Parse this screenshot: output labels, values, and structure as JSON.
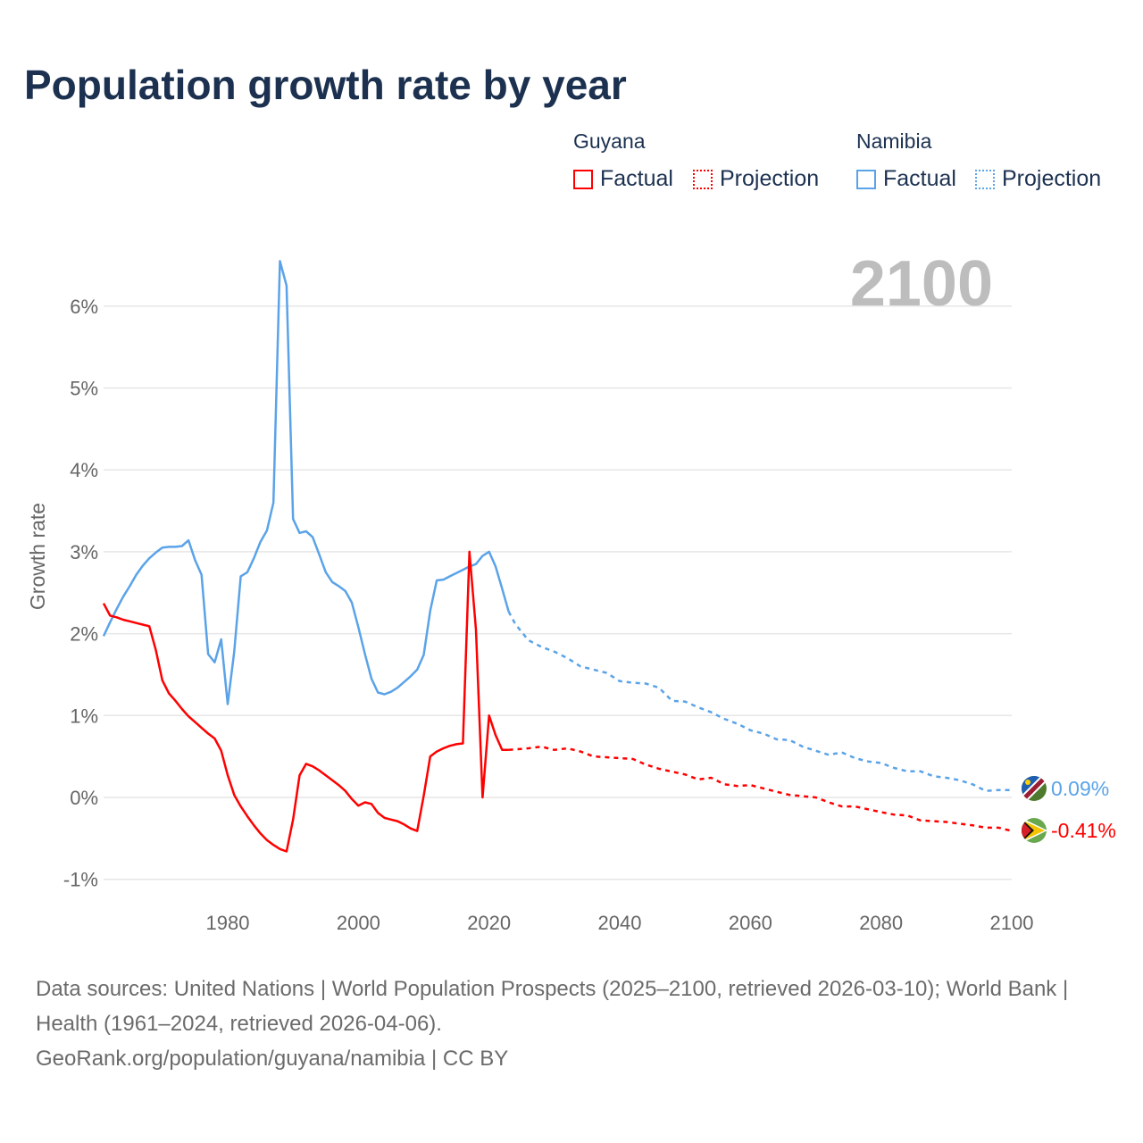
{
  "title": "Population growth rate by year",
  "legend": {
    "groups": [
      {
        "name": "Guyana",
        "color": "#ff0000",
        "factual": "Factual",
        "projection": "Projection"
      },
      {
        "name": "Namibia",
        "color": "#5aa3e8",
        "factual": "Factual",
        "projection": "Projection"
      }
    ]
  },
  "year_label": "2100",
  "end_labels": {
    "namibia": "0.09%",
    "guyana": "-0.41%"
  },
  "sources": {
    "line1": "Data sources: United Nations | World Population Prospects (2025–2100, retrieved 2026-03-10); World Bank | Health (1961–2024, retrieved 2026-04-06).",
    "line2": "GeoRank.org/population/guyana/namibia | CC BY"
  },
  "chart_data": {
    "type": "line",
    "title": "Population growth rate by year",
    "xlabel": "",
    "ylabel": "Growth rate",
    "xlim": [
      1961,
      2100
    ],
    "ylim": [
      -1.2,
      6.8
    ],
    "xticks": [
      {
        "v": 1980,
        "label": "1980"
      },
      {
        "v": 2000,
        "label": "2000"
      },
      {
        "v": 2020,
        "label": "2020"
      },
      {
        "v": 2040,
        "label": "2040"
      },
      {
        "v": 2060,
        "label": "2060"
      },
      {
        "v": 2080,
        "label": "2080"
      },
      {
        "v": 2100,
        "label": "2100"
      }
    ],
    "yticks": [
      {
        "v": -1,
        "label": "-1%"
      },
      {
        "v": 0,
        "label": "0%"
      },
      {
        "v": 1,
        "label": "1%"
      },
      {
        "v": 2,
        "label": "2%"
      },
      {
        "v": 3,
        "label": "3%"
      },
      {
        "v": 4,
        "label": "4%"
      },
      {
        "v": 5,
        "label": "5%"
      },
      {
        "v": 6,
        "label": "6%"
      }
    ],
    "grid": true,
    "series": [
      {
        "name": "Namibia",
        "kind": "factual",
        "color": "#5aa3e8",
        "points": [
          [
            1961,
            1.97
          ],
          [
            1962,
            2.14
          ],
          [
            1963,
            2.3
          ],
          [
            1964,
            2.45
          ],
          [
            1965,
            2.58
          ],
          [
            1966,
            2.72
          ],
          [
            1967,
            2.83
          ],
          [
            1968,
            2.92
          ],
          [
            1969,
            2.99
          ],
          [
            1970,
            3.05
          ],
          [
            1971,
            3.06
          ],
          [
            1972,
            3.06
          ],
          [
            1973,
            3.07
          ],
          [
            1974,
            3.14
          ],
          [
            1975,
            2.9
          ],
          [
            1976,
            2.72
          ],
          [
            1977,
            1.75
          ],
          [
            1978,
            1.65
          ],
          [
            1979,
            1.93
          ],
          [
            1980,
            1.14
          ],
          [
            1981,
            1.78
          ],
          [
            1982,
            2.7
          ],
          [
            1983,
            2.75
          ],
          [
            1984,
            2.92
          ],
          [
            1985,
            3.12
          ],
          [
            1986,
            3.26
          ],
          [
            1987,
            3.6
          ],
          [
            1988,
            6.55
          ],
          [
            1989,
            6.25
          ],
          [
            1990,
            3.4
          ],
          [
            1991,
            3.23
          ],
          [
            1992,
            3.25
          ],
          [
            1993,
            3.18
          ],
          [
            1994,
            2.97
          ],
          [
            1995,
            2.75
          ],
          [
            1996,
            2.63
          ],
          [
            1997,
            2.58
          ],
          [
            1998,
            2.52
          ],
          [
            1999,
            2.38
          ],
          [
            2000,
            2.08
          ],
          [
            2001,
            1.75
          ],
          [
            2002,
            1.45
          ],
          [
            2003,
            1.28
          ],
          [
            2004,
            1.26
          ],
          [
            2005,
            1.29
          ],
          [
            2006,
            1.34
          ],
          [
            2007,
            1.41
          ],
          [
            2008,
            1.48
          ],
          [
            2009,
            1.56
          ],
          [
            2010,
            1.74
          ],
          [
            2011,
            2.28
          ],
          [
            2012,
            2.65
          ],
          [
            2013,
            2.66
          ],
          [
            2014,
            2.7
          ],
          [
            2015,
            2.74
          ],
          [
            2016,
            2.78
          ],
          [
            2017,
            2.82
          ],
          [
            2018,
            2.85
          ],
          [
            2019,
            2.95
          ],
          [
            2020,
            3.0
          ],
          [
            2021,
            2.82
          ],
          [
            2022,
            2.55
          ],
          [
            2023,
            2.27
          ]
        ]
      },
      {
        "name": "Namibia",
        "kind": "projection",
        "color": "#5aa3e8",
        "points": [
          [
            2023,
            2.27
          ],
          [
            2024,
            2.12
          ],
          [
            2026,
            1.92
          ],
          [
            2028,
            1.84
          ],
          [
            2030,
            1.78
          ],
          [
            2032,
            1.7
          ],
          [
            2034,
            1.6
          ],
          [
            2036,
            1.56
          ],
          [
            2038,
            1.52
          ],
          [
            2040,
            1.42
          ],
          [
            2042,
            1.4
          ],
          [
            2044,
            1.39
          ],
          [
            2046,
            1.34
          ],
          [
            2048,
            1.18
          ],
          [
            2050,
            1.17
          ],
          [
            2052,
            1.1
          ],
          [
            2054,
            1.04
          ],
          [
            2056,
            0.96
          ],
          [
            2058,
            0.9
          ],
          [
            2060,
            0.82
          ],
          [
            2062,
            0.78
          ],
          [
            2064,
            0.71
          ],
          [
            2066,
            0.7
          ],
          [
            2068,
            0.62
          ],
          [
            2070,
            0.57
          ],
          [
            2072,
            0.52
          ],
          [
            2074,
            0.55
          ],
          [
            2076,
            0.48
          ],
          [
            2078,
            0.44
          ],
          [
            2080,
            0.42
          ],
          [
            2082,
            0.36
          ],
          [
            2084,
            0.32
          ],
          [
            2086,
            0.32
          ],
          [
            2088,
            0.26
          ],
          [
            2090,
            0.24
          ],
          [
            2092,
            0.21
          ],
          [
            2094,
            0.16
          ],
          [
            2096,
            0.08
          ],
          [
            2098,
            0.09
          ],
          [
            2100,
            0.09
          ]
        ]
      },
      {
        "name": "Guyana",
        "kind": "factual",
        "color": "#ff0000",
        "points": [
          [
            1961,
            2.37
          ],
          [
            1962,
            2.22
          ],
          [
            1963,
            2.2
          ],
          [
            1964,
            2.17
          ],
          [
            1965,
            2.15
          ],
          [
            1966,
            2.13
          ],
          [
            1967,
            2.11
          ],
          [
            1968,
            2.09
          ],
          [
            1969,
            1.8
          ],
          [
            1970,
            1.43
          ],
          [
            1971,
            1.27
          ],
          [
            1972,
            1.18
          ],
          [
            1973,
            1.08
          ],
          [
            1974,
            0.99
          ],
          [
            1975,
            0.92
          ],
          [
            1976,
            0.85
          ],
          [
            1977,
            0.78
          ],
          [
            1978,
            0.72
          ],
          [
            1979,
            0.57
          ],
          [
            1980,
            0.27
          ],
          [
            1981,
            0.03
          ],
          [
            1982,
            -0.11
          ],
          [
            1983,
            -0.23
          ],
          [
            1984,
            -0.34
          ],
          [
            1985,
            -0.44
          ],
          [
            1986,
            -0.52
          ],
          [
            1987,
            -0.58
          ],
          [
            1988,
            -0.63
          ],
          [
            1989,
            -0.66
          ],
          [
            1990,
            -0.27
          ],
          [
            1991,
            0.27
          ],
          [
            1992,
            0.41
          ],
          [
            1993,
            0.38
          ],
          [
            1994,
            0.33
          ],
          [
            1995,
            0.27
          ],
          [
            1996,
            0.21
          ],
          [
            1997,
            0.15
          ],
          [
            1998,
            0.08
          ],
          [
            1999,
            -0.02
          ],
          [
            2000,
            -0.1
          ],
          [
            2001,
            -0.06
          ],
          [
            2002,
            -0.08
          ],
          [
            2003,
            -0.19
          ],
          [
            2004,
            -0.25
          ],
          [
            2005,
            -0.27
          ],
          [
            2006,
            -0.29
          ],
          [
            2007,
            -0.33
          ],
          [
            2008,
            -0.38
          ],
          [
            2009,
            -0.41
          ],
          [
            2010,
            0.02
          ],
          [
            2011,
            0.5
          ],
          [
            2012,
            0.56
          ],
          [
            2013,
            0.6
          ],
          [
            2014,
            0.63
          ],
          [
            2015,
            0.65
          ],
          [
            2016,
            0.66
          ],
          [
            2017,
            3.0
          ],
          [
            2018,
            2.05
          ],
          [
            2019,
            0.0
          ],
          [
            2020,
            1.0
          ],
          [
            2021,
            0.76
          ],
          [
            2022,
            0.58
          ],
          [
            2023,
            0.58
          ]
        ]
      },
      {
        "name": "Guyana",
        "kind": "projection",
        "color": "#ff0000",
        "points": [
          [
            2023,
            0.58
          ],
          [
            2026,
            0.6
          ],
          [
            2028,
            0.62
          ],
          [
            2030,
            0.58
          ],
          [
            2032,
            0.6
          ],
          [
            2034,
            0.56
          ],
          [
            2036,
            0.5
          ],
          [
            2040,
            0.48
          ],
          [
            2042,
            0.47
          ],
          [
            2044,
            0.4
          ],
          [
            2046,
            0.35
          ],
          [
            2050,
            0.28
          ],
          [
            2052,
            0.22
          ],
          [
            2054,
            0.24
          ],
          [
            2056,
            0.16
          ],
          [
            2058,
            0.14
          ],
          [
            2060,
            0.15
          ],
          [
            2064,
            0.07
          ],
          [
            2066,
            0.03
          ],
          [
            2070,
            0.0
          ],
          [
            2072,
            -0.06
          ],
          [
            2074,
            -0.11
          ],
          [
            2076,
            -0.11
          ],
          [
            2080,
            -0.18
          ],
          [
            2082,
            -0.21
          ],
          [
            2084,
            -0.22
          ],
          [
            2086,
            -0.28
          ],
          [
            2088,
            -0.29
          ],
          [
            2090,
            -0.3
          ],
          [
            2094,
            -0.34
          ],
          [
            2096,
            -0.37
          ],
          [
            2098,
            -0.37
          ],
          [
            2100,
            -0.41
          ]
        ]
      }
    ]
  }
}
